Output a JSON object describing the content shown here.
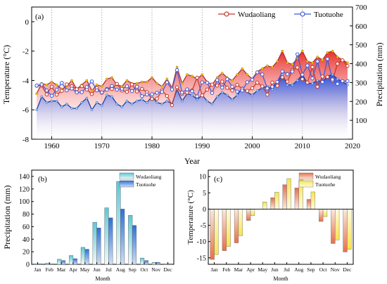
{
  "chart_data": [
    {
      "panel": "(a)",
      "type": "line",
      "xlabel": "Year",
      "ylabel_left": "Temperature (°C)",
      "ylabel_right": "Precipitation (mm)",
      "xlim": [
        1956,
        2020
      ],
      "ylim_left": [
        -8,
        1
      ],
      "ylim_right": [
        0,
        700
      ],
      "x_ticks": [
        "1960",
        "1970",
        "1980",
        "1990",
        "2000",
        "2010",
        "2020"
      ],
      "y_ticks_left": [
        "-8",
        "-6",
        "-4",
        "-2",
        "0"
      ],
      "y_ticks_right": [
        "100",
        "200",
        "300",
        "400",
        "500",
        "600",
        "700"
      ],
      "legend": [
        "Wudaoliang",
        "Tuotuohe"
      ],
      "colors": {
        "wudaoliang": "#c0392b",
        "tuotuohe": "#3b5bdb",
        "temp_marker": "#f1c40f",
        "grid": "#9a9a9a"
      },
      "years": [
        1957,
        1958,
        1959,
        1960,
        1961,
        1962,
        1963,
        1964,
        1965,
        1966,
        1967,
        1968,
        1969,
        1970,
        1971,
        1972,
        1973,
        1974,
        1975,
        1976,
        1977,
        1978,
        1979,
        1980,
        1981,
        1982,
        1983,
        1984,
        1985,
        1986,
        1987,
        1988,
        1989,
        1990,
        1991,
        1992,
        1993,
        1994,
        1995,
        1996,
        1997,
        1998,
        1999,
        2000,
        2001,
        2002,
        2003,
        2004,
        2005,
        2006,
        2007,
        2008,
        2009,
        2010,
        2011,
        2012,
        2013,
        2014,
        2015,
        2016,
        2017,
        2018,
        2019
      ],
      "series": [
        {
          "name": "Wudaoliang",
          "precipitation_mm": [
            283,
            284,
            237,
            278,
            236,
            256,
            290,
            281,
            265,
            281,
            263,
            239,
            271,
            246,
            266,
            266,
            293,
            258,
            251,
            290,
            253,
            266,
            249,
            213,
            215,
            258,
            229,
            180,
            275,
            240,
            247,
            258,
            326,
            232,
            263,
            289,
            284,
            305,
            272,
            258,
            288,
            267,
            256,
            270,
            300,
            280,
            236,
            300,
            283,
            328,
            305,
            365,
            380,
            318,
            300,
            382,
            278,
            332,
            330,
            310,
            400,
            418,
            388
          ],
          "temperature_c": [
            -4.9,
            -4.2,
            -4.3,
            -4.1,
            -4.3,
            -4.6,
            -4.4,
            -4.0,
            -4.6,
            -4.3,
            -4.0,
            -4.7,
            -4.3,
            -4.4,
            -3.9,
            -3.8,
            -4.3,
            -4.4,
            -4.0,
            -4.2,
            -4.2,
            -4.1,
            -4.1,
            -3.8,
            -4.2,
            -4.4,
            -3.9,
            -4.5,
            -3.1,
            -4.2,
            -3.6,
            -3.7,
            -3.9,
            -3.6,
            -4.1,
            -4.3,
            -3.8,
            -3.5,
            -3.8,
            -4.0,
            -3.6,
            -3.2,
            -3.6,
            -3.9,
            -3.4,
            -3.2,
            -3.0,
            -3.1,
            -2.7,
            -2.0,
            -2.8,
            -2.9,
            -2.5,
            -2.0,
            -2.7,
            -2.8,
            -2.4,
            -2.6,
            -2.1,
            -2.0,
            -2.4,
            -2.6,
            -2.8
          ]
        },
        {
          "name": "Tuotuohe",
          "precipitation_mm": [
            284,
            290,
            258,
            230,
            262,
            298,
            259,
            268,
            248,
            249,
            276,
            306,
            259,
            248,
            262,
            282,
            262,
            267,
            280,
            255,
            278,
            228,
            237,
            238,
            246,
            250,
            301,
            263,
            366,
            247,
            264,
            254,
            227,
            301,
            299,
            245,
            313,
            273,
            318,
            278,
            252,
            258,
            302,
            315,
            354,
            343,
            269,
            278,
            303,
            359,
            344,
            358,
            450,
            342,
            390,
            322,
            412,
            303,
            425,
            316,
            293,
            308,
            308
          ],
          "temperature_c": [
            -6.0,
            -5.1,
            -5.5,
            -5.4,
            -5.4,
            -5.8,
            -5.6,
            -5.9,
            -5.9,
            -5.5,
            -5.2,
            -6.0,
            -5.5,
            -5.7,
            -5.0,
            -5.1,
            -5.6,
            -5.8,
            -5.4,
            -5.6,
            -5.4,
            -5.3,
            -5.5,
            -5.1,
            -5.5,
            -5.6,
            -5.4,
            -5.6,
            -4.6,
            -5.4,
            -4.9,
            -5.0,
            -5.3,
            -5.0,
            -5.4,
            -5.6,
            -5.1,
            -4.8,
            -5.0,
            -5.3,
            -5.0,
            -4.5,
            -4.8,
            -5.0,
            -4.7,
            -4.5,
            -4.4,
            -4.6,
            -4.1,
            -3.6,
            -4.3,
            -4.3,
            -4.0,
            -3.6,
            -4.2,
            -4.2,
            -4.0,
            -4.1,
            -3.7,
            -3.6,
            -3.9,
            -4.1,
            -4.3
          ]
        }
      ]
    },
    {
      "panel": "(b)",
      "type": "bar",
      "xlabel": "Month",
      "ylabel": "Precipitation (mm)",
      "ylim": [
        0,
        150
      ],
      "y_ticks": [
        "0",
        "20",
        "40",
        "60",
        "80",
        "100",
        "120",
        "140"
      ],
      "categories": [
        "Jan",
        "Feb",
        "Mar",
        "Apr",
        "May",
        "Jun",
        "Jul",
        "Aug",
        "Sep",
        "Oct",
        "Nov",
        "Dec"
      ],
      "legend": [
        "Wudaoliang",
        "Tuotuohe"
      ],
      "series": [
        {
          "name": "Wudaoliang",
          "values": [
            1,
            2,
            8,
            14,
            27,
            67,
            90,
            132,
            78,
            10,
            3,
            1
          ],
          "color_top": "#5bc8d8",
          "color_bottom": "#f4f9f8"
        },
        {
          "name": "Tuotuohe",
          "values": [
            1,
            1,
            6,
            9,
            24,
            58,
            74,
            88,
            62,
            6,
            3,
            1
          ],
          "color_top": "#2f6fd6",
          "color_bottom": "#cfe0f5"
        }
      ]
    },
    {
      "panel": "(c)",
      "type": "bar",
      "xlabel": "Month",
      "ylabel": "Temperature (°C)",
      "ylim": [
        -17,
        12
      ],
      "y_ticks": [
        "-15",
        "-10",
        "-5",
        "0",
        "5",
        "10"
      ],
      "categories": [
        "Jan",
        "Feb",
        "Mar",
        "Apr",
        "May",
        "Jun",
        "Jul",
        "Aug",
        "Sep",
        "Oct",
        "Nov",
        "Dec"
      ],
      "legend": [
        "Wudaoliang",
        "Tuotuohe"
      ],
      "series": [
        {
          "name": "Wudaoliang",
          "values": [
            -15.5,
            -12.8,
            -10.4,
            -3.5,
            0,
            3.5,
            7.5,
            6.5,
            3.0,
            -3.8,
            -10.6,
            -13.2
          ],
          "color_top": "#e6704a",
          "color_bottom": "#fbe9dc"
        },
        {
          "name": "Tuotuohe",
          "values": [
            -14.0,
            -11.5,
            -8.2,
            -2.0,
            2.2,
            5.2,
            9.4,
            9.0,
            5.3,
            -2.3,
            -9.5,
            -12.4
          ],
          "color_top": "#f7e44d",
          "color_bottom": "#fffbe0"
        }
      ]
    }
  ]
}
